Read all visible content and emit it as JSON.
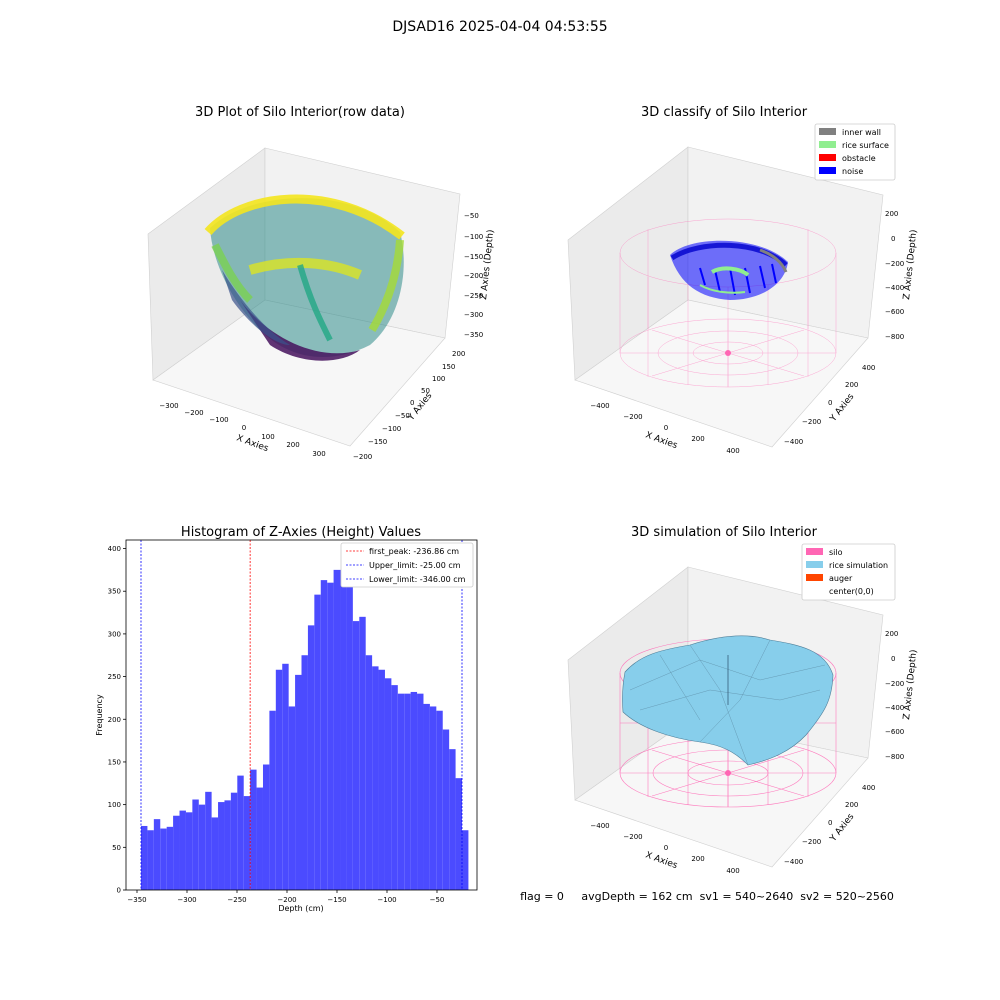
{
  "suptitle": "DJSAD16 2025-04-04 04:53:55",
  "status_line": "flag = 0     avgDepth = 162 cm  sv1 = 540~2640  sv2 = 520~2560",
  "colors": {
    "hist_bar": "#4b4bff",
    "silo_wire": "#ff66b4",
    "inner_wall": "#808080",
    "rice_surface": "#90ee90",
    "obstacle": "#ff0000",
    "noise": "#0000ff",
    "rice_simulation": "#87ceeb",
    "auger": "#ff4500",
    "first_peak_line": "#ff0000",
    "limit_line": "#0000ff"
  },
  "panels": {
    "raw": {
      "title": "3D Plot of Silo Interior(row data)",
      "xlabel": "X Axies",
      "ylabel": "Y Axies",
      "zlabel": "Z Axies (Depth)",
      "xticks": [
        "−300",
        "−200",
        "−100",
        "0",
        "100",
        "200",
        "300"
      ],
      "yticks": [
        "200",
        "150",
        "100",
        "50",
        "0",
        "−50",
        "−100",
        "−150",
        "−200"
      ],
      "zticks": [
        "−50",
        "−100",
        "−150",
        "−200",
        "−250",
        "−300",
        "−350"
      ]
    },
    "classify": {
      "title": "3D classify of Silo Interior",
      "xlabel": "X Axies",
      "ylabel": "Y Axies",
      "zlabel": "Z Axies (Depth)",
      "xticks": [
        "−400",
        "−200",
        "0",
        "200",
        "400"
      ],
      "yticks": [
        "400",
        "200",
        "0",
        "−200",
        "−400"
      ],
      "zticks": [
        "200",
        "0",
        "−200",
        "−400",
        "−600",
        "−800"
      ],
      "legend": [
        "inner wall",
        "rice surface",
        "obstacle",
        "noise"
      ]
    },
    "simulation": {
      "title": "3D simulation of Silo Interior",
      "xlabel": "X Axies",
      "ylabel": "Y Axies",
      "zlabel": "Z Axies (Depth)",
      "xticks": [
        "−400",
        "−200",
        "0",
        "200",
        "400"
      ],
      "yticks": [
        "400",
        "200",
        "0",
        "−200",
        "−400"
      ],
      "zticks": [
        "200",
        "0",
        "−200",
        "−400",
        "−600",
        "−800"
      ],
      "legend": [
        "silo",
        "rice simulation",
        "auger",
        "center(0,0)"
      ]
    }
  },
  "chart_data": [
    {
      "type": "scatter",
      "title": "3D Plot of Silo Interior(row data)",
      "xlabel": "X Axies",
      "ylabel": "Y Axies",
      "zlabel": "Z Axies (Depth)",
      "xlim": [
        -350,
        350
      ],
      "ylim": [
        -200,
        200
      ],
      "zlim": [
        -370,
        -30
      ],
      "colormap": "viridis"
    },
    {
      "type": "scatter",
      "title": "3D classify of Silo Interior",
      "xlabel": "X Axies",
      "ylabel": "Y Axies",
      "zlabel": "Z Axies (Depth)",
      "xlim": [
        -500,
        500
      ],
      "ylim": [
        -500,
        500
      ],
      "zlim": [
        -850,
        300
      ],
      "legend": [
        "inner wall",
        "rice surface",
        "obstacle",
        "noise"
      ],
      "legend_position": "top-right"
    },
    {
      "type": "bar",
      "title": "Histogram of Z-Axies (Height) Values",
      "xlabel": "Depth (cm)",
      "ylabel": "Frequency",
      "xlim": [
        -361,
        -10
      ],
      "ylim": [
        0,
        410
      ],
      "xticks": [
        -350,
        -300,
        -250,
        -200,
        -150,
        -100,
        -50
      ],
      "xtick_labels": [
        "−350",
        "−300",
        "−250",
        "−200",
        "−150",
        "−100",
        "−50"
      ],
      "yticks": [
        0,
        50,
        100,
        150,
        200,
        250,
        300,
        350,
        400
      ],
      "bin_start": -346,
      "bin_width": 6.42,
      "values": [
        75,
        70,
        83,
        72,
        74,
        87,
        93,
        91,
        106,
        100,
        115,
        85,
        103,
        105,
        114,
        134,
        110,
        141,
        120,
        147,
        210,
        258,
        265,
        215,
        252,
        275,
        310,
        346,
        363,
        360,
        375,
        375,
        381,
        315,
        320,
        275,
        262,
        258,
        248,
        240,
        230,
        230,
        232,
        230,
        218,
        215,
        210,
        188,
        165,
        131,
        70
      ],
      "vlines": [
        {
          "name": "first_peak: -236.86 cm",
          "x": -236.86,
          "color": "#ff0000"
        },
        {
          "name": "Upper_limit: -25.00 cm",
          "x": -25.0,
          "color": "#0000ff"
        },
        {
          "name": "Lower_limit: -346.00 cm",
          "x": -346.0,
          "color": "#0000ff"
        }
      ],
      "legend_position": "top-right"
    },
    {
      "type": "area",
      "title": "3D simulation of Silo Interior",
      "xlabel": "X Axies",
      "ylabel": "Y Axies",
      "zlabel": "Z Axies (Depth)",
      "xlim": [
        -500,
        500
      ],
      "ylim": [
        -500,
        500
      ],
      "zlim": [
        -850,
        300
      ],
      "legend": [
        "silo",
        "rice simulation",
        "auger",
        "center(0,0)"
      ],
      "legend_position": "top-right"
    }
  ]
}
